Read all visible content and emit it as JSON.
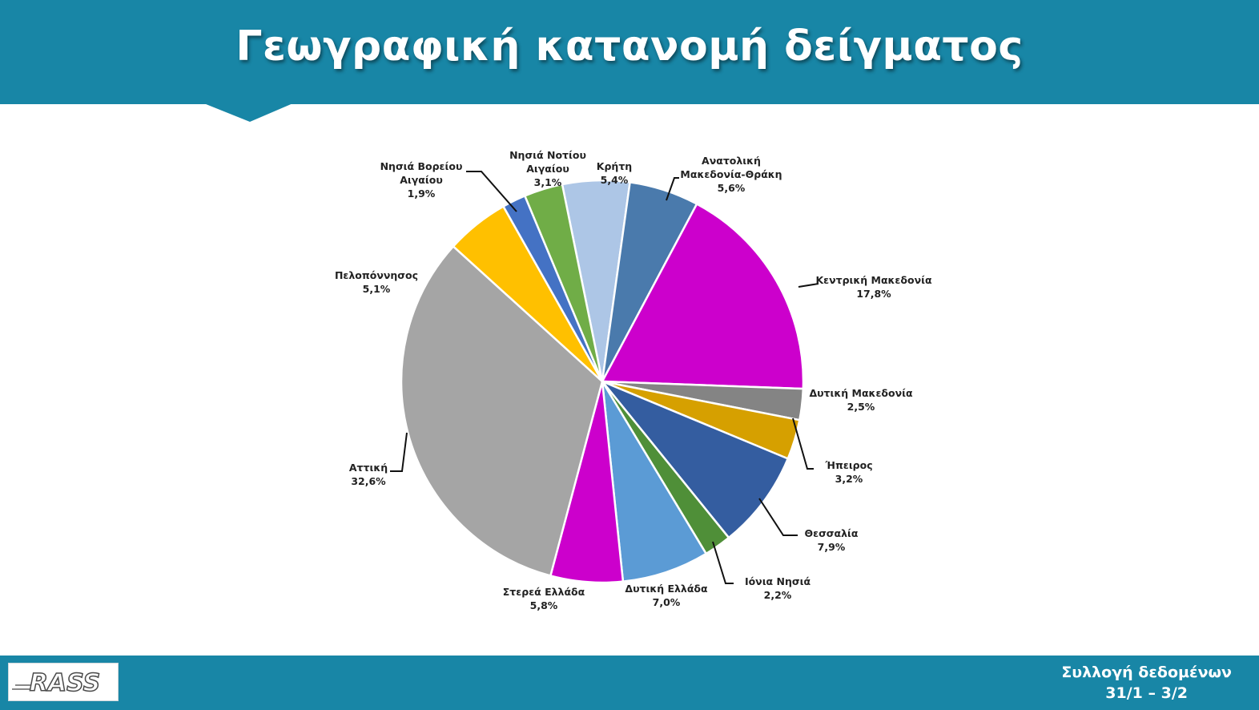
{
  "header": {
    "title": "Γεωγραφική κατανομή δείγματος"
  },
  "footer": {
    "logo_text": "RASS",
    "info_line1": "Συλλογή δεδομένων",
    "info_line2": "31/1 – 3/2"
  },
  "colors": {
    "brand": "#1886a6"
  },
  "chart_data": {
    "type": "pie",
    "title": "",
    "start_angle_deg": 348.5,
    "direction": "clockwise",
    "slices": [
      {
        "label": [
          "Κρήτη"
        ],
        "value": 5.4,
        "value_text": "5,4%",
        "color": "#adc6e6"
      },
      {
        "label": [
          "Ανατολική",
          "Μακεδονία-Θράκη"
        ],
        "value": 5.6,
        "value_text": "5,6%",
        "color": "#4a7aac"
      },
      {
        "label": [
          "Κεντρική Μακεδονία"
        ],
        "value": 17.8,
        "value_text": "17,8%",
        "color": "#cc00cc"
      },
      {
        "label": [
          "Δυτική Μακεδονία"
        ],
        "value": 2.5,
        "value_text": "2,5%",
        "color": "#848484"
      },
      {
        "label": [
          "Ήπειρος"
        ],
        "value": 3.2,
        "value_text": "3,2%",
        "color": "#d6a000"
      },
      {
        "label": [
          "Θεσσαλία"
        ],
        "value": 7.9,
        "value_text": "7,9%",
        "color": "#345da0"
      },
      {
        "label": [
          "Ιόνια Νησιά"
        ],
        "value": 2.2,
        "value_text": "2,2%",
        "color": "#4f8f38"
      },
      {
        "label": [
          "Δυτική Ελλάδα"
        ],
        "value": 7.0,
        "value_text": "7,0%",
        "color": "#5b9bd5"
      },
      {
        "label": [
          "Στερεά Ελλάδα"
        ],
        "value": 5.8,
        "value_text": "5,8%",
        "color": "#cc00cc"
      },
      {
        "label": [
          "Αττική"
        ],
        "value": 32.6,
        "value_text": "32,6%",
        "color": "#a5a5a5"
      },
      {
        "label": [
          "Πελοπόννησος"
        ],
        "value": 5.1,
        "value_text": "5,1%",
        "color": "#ffc000"
      },
      {
        "label": [
          "Νησιά Βορείου",
          "Αιγαίου"
        ],
        "value": 1.9,
        "value_text": "1,9%",
        "color": "#4472c4"
      },
      {
        "label": [
          "Νησιά Νοτίου",
          "Αιγαίου"
        ],
        "value": 3.1,
        "value_text": "3,1%",
        "color": "#70ad47"
      }
    ]
  }
}
